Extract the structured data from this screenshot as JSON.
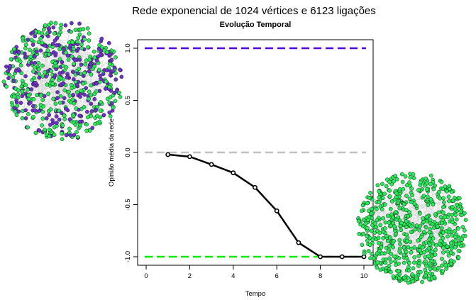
{
  "title": "Rede exponencial de 1024 vértices e 6123 ligações",
  "chart_data": {
    "type": "line",
    "title": "Evolução Temporal",
    "xlabel": "Tempo",
    "ylabel": "Opinião média da rede",
    "xlim": [
      0,
      10
    ],
    "ylim": [
      -1.0,
      1.0
    ],
    "x_ticks": [
      "0",
      "2",
      "4",
      "6",
      "8",
      "10"
    ],
    "y_ticks": [
      "-1.0",
      "-0.5",
      "0.0",
      "0.5",
      "1.0"
    ],
    "grid": false,
    "series": [
      {
        "x": [
          1,
          2,
          3,
          4,
          5,
          6,
          7,
          8,
          9,
          10
        ],
        "values": [
          -0.02,
          -0.04,
          -0.115,
          -0.195,
          -0.335,
          -0.56,
          -0.865,
          -1.0,
          -1.0,
          -1.0
        ],
        "color": "#000000"
      }
    ],
    "reference_lines": [
      {
        "y": 1.0,
        "color": "#5000e0",
        "style": "dashed"
      },
      {
        "y": 0.0,
        "color": "#c0c0c0",
        "style": "dashed"
      },
      {
        "y": -1.0,
        "color": "#00ee00",
        "style": "dashed"
      }
    ]
  },
  "network_colors": {
    "opinion_pos": "#7030d0",
    "opinion_neg": "#22ee55",
    "edges": "#b8b8b8"
  }
}
